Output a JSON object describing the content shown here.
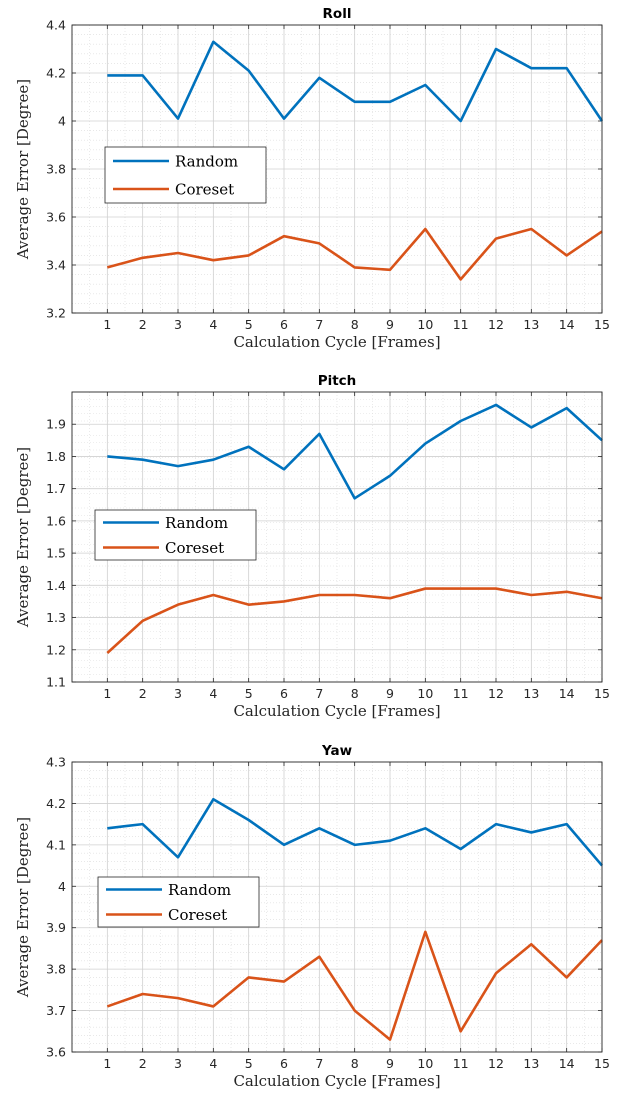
{
  "chart_data": [
    {
      "type": "line",
      "title": "Roll",
      "xlabel": "Calculation Cycle [Frames]",
      "ylabel": "Average Error [Degree]",
      "x": [
        1,
        2,
        3,
        4,
        5,
        6,
        7,
        8,
        9,
        10,
        11,
        12,
        13,
        14,
        15
      ],
      "xlim": [
        0,
        15
      ],
      "ylim": [
        3.2,
        4.4
      ],
      "yticks": [
        "3.2",
        "3.4",
        "3.6",
        "3.8",
        "4",
        "4.2",
        "4.4"
      ],
      "grid": true,
      "legend_position": "middle-left",
      "series": [
        {
          "name": "Random",
          "color": "#0072BD",
          "values": [
            4.19,
            4.19,
            4.01,
            4.33,
            4.21,
            4.01,
            4.18,
            4.08,
            4.08,
            4.15,
            4.0,
            4.3,
            4.22,
            4.22,
            4.0
          ]
        },
        {
          "name": "Coreset",
          "color": "#D95319",
          "values": [
            3.39,
            3.43,
            3.45,
            3.42,
            3.44,
            3.52,
            3.49,
            3.39,
            3.38,
            3.55,
            3.34,
            3.51,
            3.55,
            3.44,
            3.54
          ]
        }
      ]
    },
    {
      "type": "line",
      "title": "Pitch",
      "xlabel": "Calculation Cycle [Frames]",
      "ylabel": "Average Error [Degree]",
      "x": [
        1,
        2,
        3,
        4,
        5,
        6,
        7,
        8,
        9,
        10,
        11,
        12,
        13,
        14,
        15
      ],
      "xlim": [
        0,
        15
      ],
      "ylim": [
        1.1,
        2.0
      ],
      "yticks": [
        "1.1",
        "1.2",
        "1.3",
        "1.4",
        "1.5",
        "1.6",
        "1.7",
        "1.8",
        "1.9"
      ],
      "grid": true,
      "legend_position": "middle-left",
      "series": [
        {
          "name": "Random",
          "color": "#0072BD",
          "values": [
            1.8,
            1.79,
            1.77,
            1.79,
            1.83,
            1.76,
            1.87,
            1.67,
            1.74,
            1.84,
            1.91,
            1.96,
            1.89,
            1.95,
            1.85
          ]
        },
        {
          "name": "Coreset",
          "color": "#D95319",
          "values": [
            1.19,
            1.29,
            1.34,
            1.37,
            1.34,
            1.35,
            1.37,
            1.37,
            1.36,
            1.39,
            1.39,
            1.39,
            1.37,
            1.38,
            1.36
          ]
        }
      ]
    },
    {
      "type": "line",
      "title": "Yaw",
      "xlabel": "Calculation Cycle [Frames]",
      "ylabel": "Average Error [Degree]",
      "x": [
        1,
        2,
        3,
        4,
        5,
        6,
        7,
        8,
        9,
        10,
        11,
        12,
        13,
        14,
        15
      ],
      "xlim": [
        0,
        15
      ],
      "ylim": [
        3.6,
        4.3
      ],
      "yticks": [
        "3.6",
        "3.7",
        "3.8",
        "3.9",
        "4",
        "4.1",
        "4.2",
        "4.3"
      ],
      "grid": true,
      "legend_position": "middle-left",
      "series": [
        {
          "name": "Random",
          "color": "#0072BD",
          "values": [
            4.14,
            4.15,
            4.07,
            4.21,
            4.16,
            4.1,
            4.14,
            4.1,
            4.11,
            4.14,
            4.09,
            4.15,
            4.13,
            4.15,
            4.05
          ]
        },
        {
          "name": "Coreset",
          "color": "#D95319",
          "values": [
            3.71,
            3.74,
            3.73,
            3.71,
            3.78,
            3.77,
            3.83,
            3.7,
            3.63,
            3.89,
            3.65,
            3.79,
            3.86,
            3.78,
            3.87
          ]
        }
      ]
    }
  ]
}
